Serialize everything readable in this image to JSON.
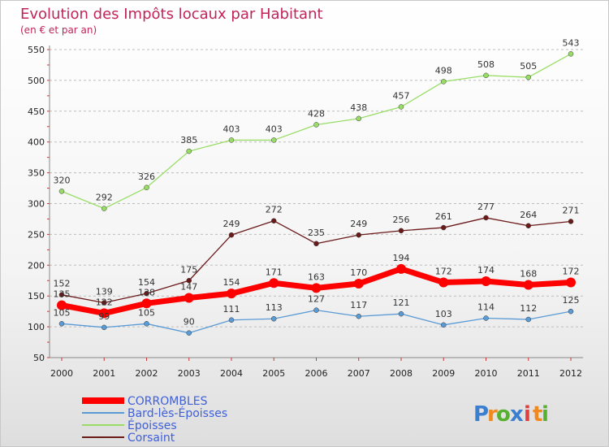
{
  "chart_data": {
    "type": "line",
    "title": "Evolution des Impôts locaux par Habitant",
    "subtitle": "(en € et par an)",
    "x": [
      "2000",
      "2001",
      "2002",
      "2003",
      "2004",
      "2005",
      "2006",
      "2007",
      "2008",
      "2009",
      "2010",
      "2011",
      "2012"
    ],
    "ylim": [
      50,
      550
    ],
    "yticks": [
      "50",
      "100",
      "150",
      "200",
      "250",
      "300",
      "350",
      "400",
      "450",
      "500",
      "550"
    ],
    "grid": "horizontal dashed",
    "legend_position": "bottom-left",
    "series": [
      {
        "name": "CORROMBLES",
        "color": "#ff0000",
        "values": [
          135,
          122,
          138,
          147,
          154,
          171,
          163,
          170,
          194,
          172,
          174,
          168,
          172
        ]
      },
      {
        "name": "Bard-lès-Époisses",
        "color": "#5b9bd5",
        "values": [
          105,
          99,
          105,
          90,
          111,
          113,
          127,
          117,
          121,
          103,
          114,
          112,
          125
        ]
      },
      {
        "name": "Époisses",
        "color": "#99dd66",
        "values": [
          320,
          292,
          326,
          385,
          403,
          403,
          428,
          438,
          457,
          498,
          508,
          505,
          543
        ]
      },
      {
        "name": "Corsaint",
        "color": "#6b1a1a",
        "values": [
          152,
          139,
          154,
          175,
          249,
          272,
          235,
          249,
          256,
          261,
          277,
          264,
          271
        ]
      }
    ]
  },
  "logo": {
    "letters": [
      "P",
      "r",
      "o",
      "x",
      "i",
      "t",
      "i"
    ],
    "colors": [
      "#3a7fd0",
      "#f08a20",
      "#58b030",
      "#3a7fd0",
      "#e04040",
      "#f08a20",
      "#58b030"
    ]
  }
}
